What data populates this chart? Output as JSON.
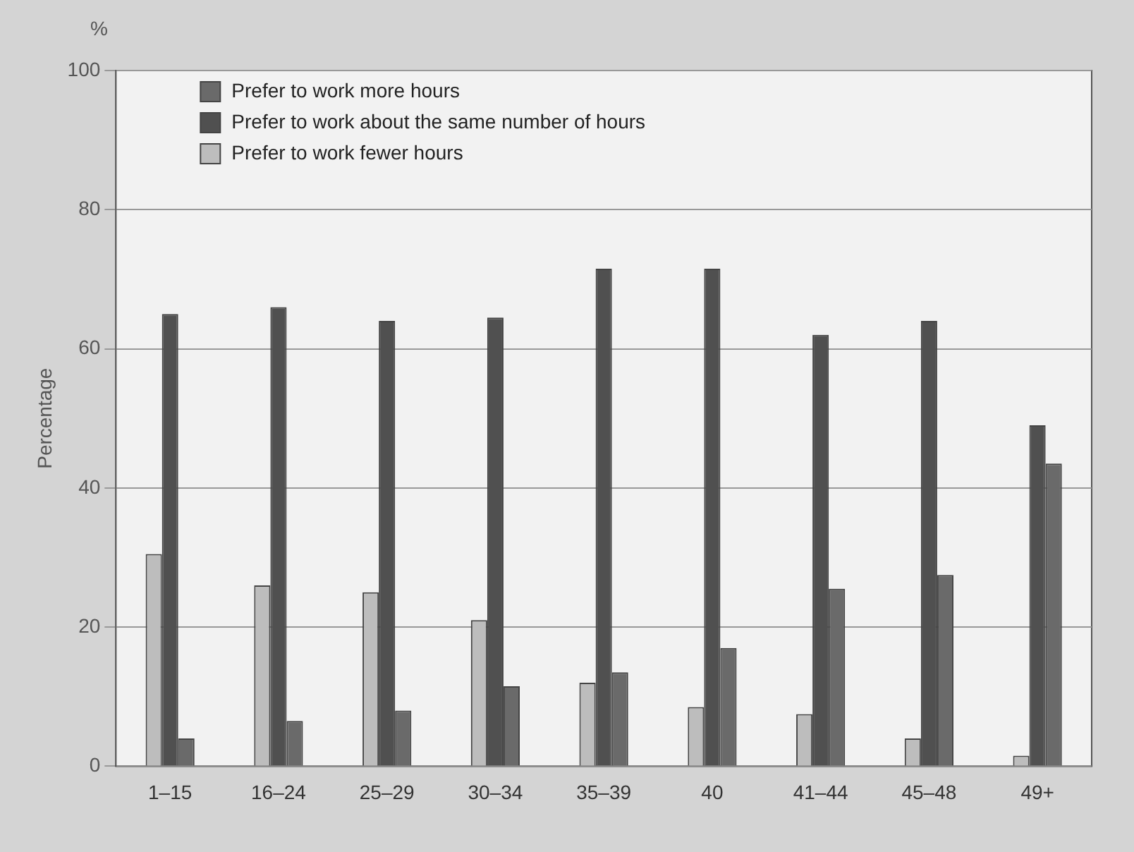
{
  "chart_data": {
    "type": "bar",
    "ylabel": "Percentage",
    "annotations": [
      "%"
    ],
    "categories": [
      "1–15",
      "16–24",
      "25–29",
      "30–34",
      "35–39",
      "40",
      "41–44",
      "45–48",
      "49+"
    ],
    "series": [
      {
        "name": "Prefer to work fewer hours",
        "color": "#bdbdbd",
        "values": [
          30.5,
          26,
          25,
          21,
          12,
          8.5,
          7.5,
          4,
          1.5
        ]
      },
      {
        "name": "Prefer to work about the same number of hours",
        "color": "#505050",
        "values": [
          65,
          66,
          64,
          64.5,
          71.5,
          71.5,
          62,
          64,
          49
        ]
      },
      {
        "name": "Prefer to work more hours",
        "color": "#6a6a6a",
        "values": [
          4,
          6.5,
          8,
          11.5,
          13.5,
          17,
          25.5,
          27.5,
          43.5
        ]
      }
    ],
    "ylim": [
      0,
      100
    ],
    "yticks": [
      0,
      20,
      40,
      60,
      80,
      100
    ],
    "grid": "y",
    "legend": "top left"
  }
}
